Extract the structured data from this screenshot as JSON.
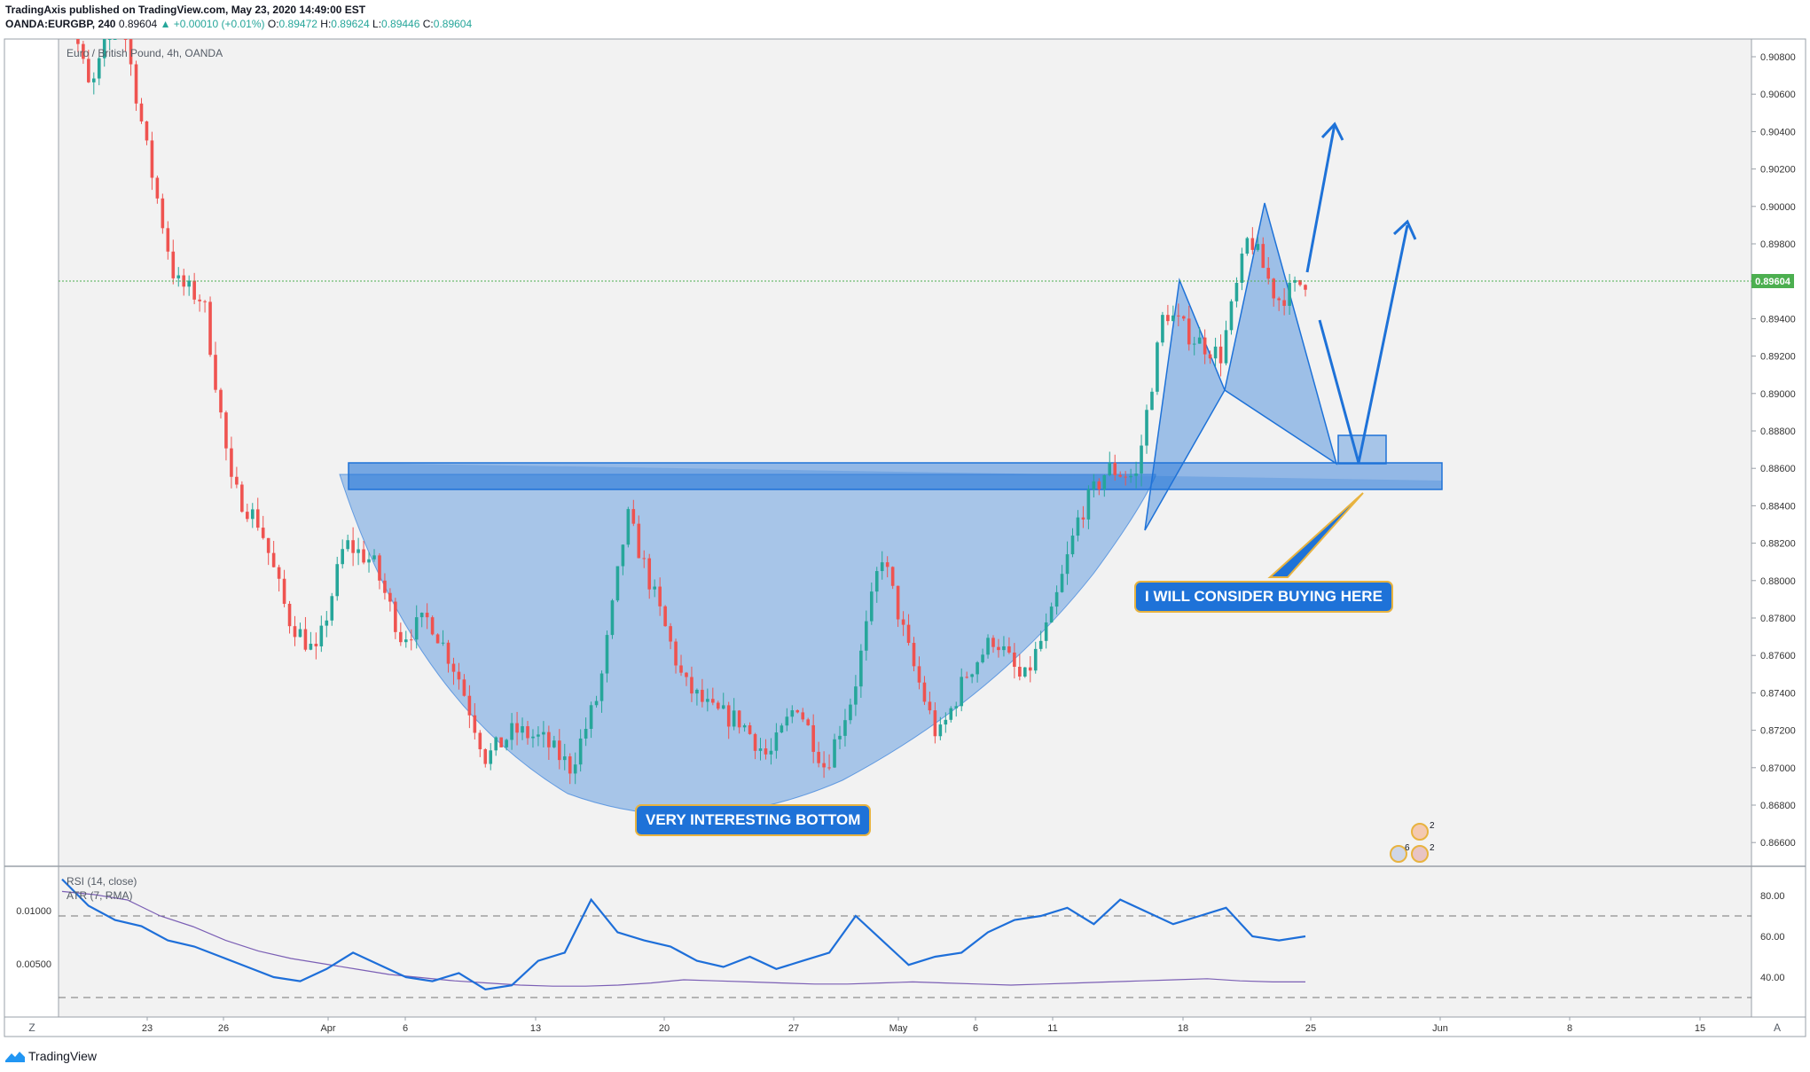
{
  "header": {
    "line1": "TradingAxis published on TradingView.com, May 23, 2020 14:49:00 EST",
    "symbol": "OANDA:EURGBP, 240",
    "last": "0.89604",
    "change": "▲ +0.00010 (+0.01%)",
    "o_label": "O:",
    "o": "0.89472",
    "h_label": "H:",
    "h": "0.89624",
    "l_label": "L:",
    "l": "0.89446",
    "c_label": "C:",
    "c": "0.89604"
  },
  "chart_title": "Euro / British Pound, 4h, OANDA",
  "indicators": {
    "rsi": "RSI (14, close)",
    "atr": "ATR (7, RMA)"
  },
  "annotations": {
    "bottom_callout": "VERY INTERESTING BOTTOM",
    "buy_callout": "I WILL CONSIDER BUYING HERE"
  },
  "badges": {
    "top_count": "2",
    "left_count": "6",
    "right_count": "2"
  },
  "footer": {
    "brand": "TradingView"
  },
  "axis_buttons": {
    "left": "Z",
    "right": "A"
  },
  "colors": {
    "up": "#26a69a",
    "down": "#ef5350",
    "pattern": "#1e72d8",
    "rsi": "#1e6fd9",
    "atr": "#7b5fb5",
    "price_tag": "#4caf50"
  },
  "chart_data": [
    {
      "type": "candlestick",
      "title": "Euro / British Pound, 4h, OANDA",
      "x_ticks": [
        "23",
        "26",
        "Apr",
        "6",
        "13",
        "20",
        "27",
        "May",
        "6",
        "11",
        "18",
        "25",
        "Jun",
        "8",
        "15"
      ],
      "y_ticks": [
        "0.90800",
        "0.90600",
        "0.90400",
        "0.90200",
        "0.90000",
        "0.89800",
        "0.89400",
        "0.89200",
        "0.89000",
        "0.88800",
        "0.88600",
        "0.88400",
        "0.88200",
        "0.88000",
        "0.87800",
        "0.87600",
        "0.87400",
        "0.87200",
        "0.87000",
        "0.86800",
        "0.86600"
      ],
      "last_price": "0.89604",
      "ylim": [
        0.8654,
        0.9102
      ],
      "close_path": [
        {
          "t": "Mar 20",
          "c": 0.912
        },
        {
          "t": "Mar 23",
          "c": 0.906
        },
        {
          "t": "Mar 25",
          "c": 0.911
        },
        {
          "t": "Mar 26",
          "c": 0.903
        },
        {
          "t": "Mar 27",
          "c": 0.896
        },
        {
          "t": "Mar 30",
          "c": 0.895
        },
        {
          "t": "Mar 31",
          "c": 0.885
        },
        {
          "t": "Apr 1",
          "c": 0.883
        },
        {
          "t": "Apr 2",
          "c": 0.878
        },
        {
          "t": "Apr 3",
          "c": 0.876
        },
        {
          "t": "Apr 6",
          "c": 0.882
        },
        {
          "t": "Apr 7",
          "c": 0.881
        },
        {
          "t": "Apr 8",
          "c": 0.877
        },
        {
          "t": "Apr 9",
          "c": 0.878
        },
        {
          "t": "Apr 13",
          "c": 0.875
        },
        {
          "t": "Apr 14",
          "c": 0.8705
        },
        {
          "t": "Apr 15",
          "c": 0.872
        },
        {
          "t": "Apr 16",
          "c": 0.8715
        },
        {
          "t": "Apr 17",
          "c": 0.87
        },
        {
          "t": "Apr 20",
          "c": 0.874
        },
        {
          "t": "Apr 21",
          "c": 0.8835
        },
        {
          "t": "Apr 22",
          "c": 0.879
        },
        {
          "t": "Apr 23",
          "c": 0.8745
        },
        {
          "t": "Apr 24",
          "c": 0.873
        },
        {
          "t": "Apr 27",
          "c": 0.8725
        },
        {
          "t": "Apr 28",
          "c": 0.8705
        },
        {
          "t": "Apr 29",
          "c": 0.8735
        },
        {
          "t": "Apr 30",
          "c": 0.87
        },
        {
          "t": "May 1",
          "c": 0.874
        },
        {
          "t": "May 4",
          "c": 0.8815
        },
        {
          "t": "May 5",
          "c": 0.876
        },
        {
          "t": "May 6",
          "c": 0.8715
        },
        {
          "t": "May 7",
          "c": 0.875
        },
        {
          "t": "May 8",
          "c": 0.877
        },
        {
          "t": "May 11",
          "c": 0.8745
        },
        {
          "t": "May 12",
          "c": 0.878
        },
        {
          "t": "May 13",
          "c": 0.8835
        },
        {
          "t": "May 14",
          "c": 0.886
        },
        {
          "t": "May 15",
          "c": 0.8855
        },
        {
          "t": "May 18",
          "c": 0.8945
        },
        {
          "t": "May 19",
          "c": 0.893
        },
        {
          "t": "May 20",
          "c": 0.892
        },
        {
          "t": "May 21",
          "c": 0.8985
        },
        {
          "t": "May 22",
          "c": 0.895
        },
        {
          "t": "May 22 close",
          "c": 0.89604
        }
      ]
    },
    {
      "type": "line",
      "title": "RSI (14, close) / ATR (7, RMA)",
      "y_ticks_right": [
        "80.00",
        "60.00",
        "40.00"
      ],
      "y_ticks_left": [
        "0.01000",
        "0.00500"
      ],
      "series": [
        {
          "name": "RSI (14, close)",
          "values": [
            88,
            75,
            68,
            65,
            58,
            55,
            50,
            45,
            40,
            38,
            44,
            52,
            46,
            40,
            38,
            42,
            34,
            36,
            48,
            52,
            78,
            62,
            58,
            55,
            48,
            45,
            50,
            44,
            48,
            52,
            70,
            58,
            46,
            50,
            52,
            62,
            68,
            70,
            74,
            66,
            78,
            72,
            66,
            70,
            74,
            60,
            58,
            60
          ]
        },
        {
          "name": "ATR (7, RMA)",
          "values": [
            0.0118,
            0.0115,
            0.011,
            0.0095,
            0.0085,
            0.0072,
            0.0062,
            0.0055,
            0.005,
            0.0045,
            0.004,
            0.0037,
            0.0034,
            0.0032,
            0.003,
            0.0029,
            0.0029,
            0.003,
            0.0032,
            0.0035,
            0.0034,
            0.0033,
            0.0032,
            0.0031,
            0.0031,
            0.0032,
            0.0033,
            0.0032,
            0.0031,
            0.003,
            0.0031,
            0.0032,
            0.0033,
            0.0034,
            0.0035,
            0.0036,
            0.0034,
            0.0033,
            0.0033
          ]
        }
      ]
    }
  ]
}
